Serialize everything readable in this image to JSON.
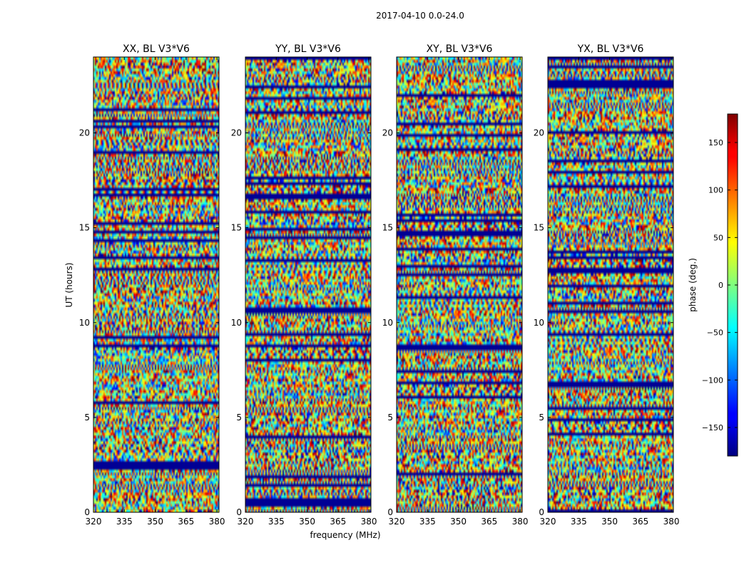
{
  "suptitle": "2017-04-10 0.0-24.0",
  "colorbar": {
    "label": "phase (deg.)",
    "ticks": [
      150,
      100,
      50,
      0,
      -50,
      -100,
      -150
    ],
    "tick_labels": [
      "150",
      "100",
      "50",
      "0",
      "−50",
      "−100",
      "−150"
    ],
    "range": [
      -180,
      180
    ],
    "colormap": "jet"
  },
  "chart_data": [
    {
      "type": "heatmap",
      "title": "XX, BL V3*V6",
      "xlabel": "",
      "ylabel": "UT (hours)",
      "xlim": [
        320,
        381
      ],
      "ylim": [
        0,
        24
      ],
      "xticks": [
        320,
        335,
        350,
        365,
        380
      ],
      "yticks": [
        0,
        5,
        10,
        15,
        20
      ],
      "z": "phase (deg.)",
      "zlim": [
        -180,
        180
      ]
    },
    {
      "type": "heatmap",
      "title": "YY, BL V3*V6",
      "xlabel": "frequency (MHz)",
      "ylabel": "",
      "xlim": [
        320,
        381
      ],
      "ylim": [
        0,
        24
      ],
      "xticks": [
        320,
        335,
        350,
        365,
        380
      ],
      "yticks": [
        0,
        5,
        10,
        15,
        20
      ],
      "z": "phase (deg.)",
      "zlim": [
        -180,
        180
      ]
    },
    {
      "type": "heatmap",
      "title": "XY, BL V3*V6",
      "xlabel": "",
      "ylabel": "",
      "xlim": [
        320,
        381
      ],
      "ylim": [
        0,
        24
      ],
      "xticks": [
        320,
        335,
        350,
        365,
        380
      ],
      "yticks": [
        0,
        5,
        10,
        15,
        20
      ],
      "z": "phase (deg.)",
      "zlim": [
        -180,
        180
      ]
    },
    {
      "type": "heatmap",
      "title": "YX, BL V3*V6",
      "xlabel": "",
      "ylabel": "",
      "xlim": [
        320,
        381
      ],
      "ylim": [
        0,
        24
      ],
      "xticks": [
        320,
        335,
        350,
        365,
        380
      ],
      "yticks": [
        0,
        5,
        10,
        15,
        20
      ],
      "z": "phase (deg.)",
      "zlim": [
        -180,
        180
      ]
    }
  ]
}
